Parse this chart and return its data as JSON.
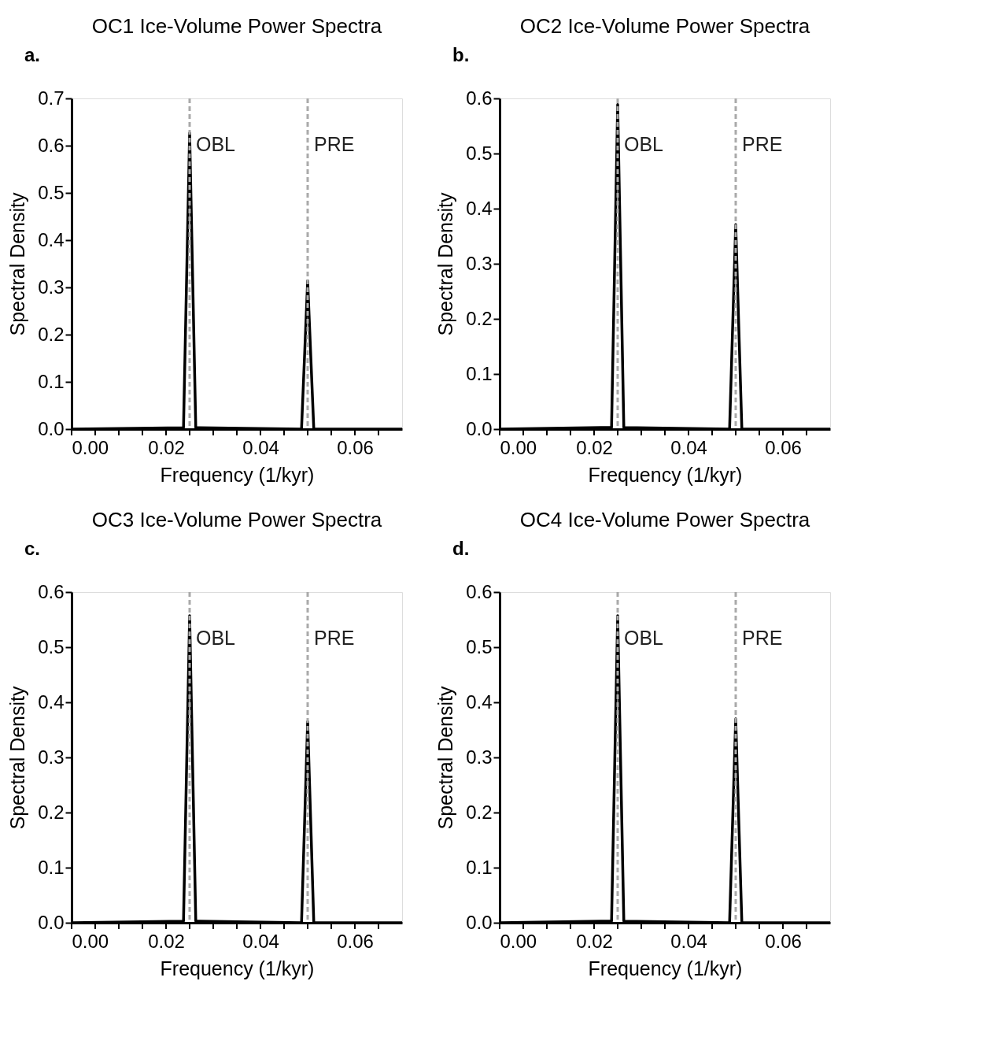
{
  "chart_data": [
    {
      "type": "line",
      "title": "OC1 Ice-Volume Power Spectra",
      "xlabel": "Frequency (1/kyr)",
      "ylabel": "Spectral Density",
      "annotations": [
        "a."
      ],
      "line_style": "solid",
      "marker": "none",
      "grid": false,
      "series": [
        {
          "color": "#000000",
          "x": [
            0,
            0.0237,
            0.025,
            0.0263,
            0.0487,
            0.05,
            0.0513,
            0.07
          ],
          "values": [
            0,
            0.003,
            0.627,
            0.003,
            0,
            0.314,
            0,
            0
          ]
        }
      ],
      "ref_lines": [
        {
          "axis": "x",
          "value": 0.025,
          "label": "OBL",
          "color": "#aaaaaa",
          "line_style": "dashed"
        },
        {
          "axis": "x",
          "value": 0.05,
          "label": "PRE",
          "color": "#aaaaaa",
          "line_style": "dashed"
        }
      ],
      "xlim": [
        0,
        0.07
      ],
      "ylim": [
        0,
        0.7
      ],
      "xticks": [
        {
          "value": 0,
          "label": "0.00"
        },
        {
          "value": 0.005,
          "label": null
        },
        {
          "value": 0.01,
          "label": null
        },
        {
          "value": 0.015,
          "label": null
        },
        {
          "value": 0.02,
          "label": "0.02"
        },
        {
          "value": 0.025,
          "label": null
        },
        {
          "value": 0.03,
          "label": null
        },
        {
          "value": 0.035,
          "label": null
        },
        {
          "value": 0.04,
          "label": "0.04"
        },
        {
          "value": 0.045,
          "label": null
        },
        {
          "value": 0.05,
          "label": null
        },
        {
          "value": 0.055,
          "label": null
        },
        {
          "value": 0.06,
          "label": "0.06"
        },
        {
          "value": 0.065,
          "label": null
        }
      ],
      "yticks": [
        {
          "value": 0,
          "label": "0.0"
        },
        {
          "value": 0.1,
          "label": "0.1"
        },
        {
          "value": 0.2,
          "label": "0.2"
        },
        {
          "value": 0.3,
          "label": "0.3"
        },
        {
          "value": 0.4,
          "label": "0.4"
        },
        {
          "value": 0.5,
          "label": "0.5"
        },
        {
          "value": 0.6,
          "label": "0.6"
        },
        {
          "value": 0.7,
          "label": "0.7"
        }
      ]
    },
    {
      "type": "line",
      "title": "OC2 Ice-Volume Power Spectra",
      "xlabel": "Frequency (1/kyr)",
      "ylabel": "Spectral Density",
      "annotations": [
        "b."
      ],
      "line_style": "solid",
      "marker": "none",
      "grid": false,
      "series": [
        {
          "color": "#000000",
          "x": [
            0,
            0.0237,
            0.025,
            0.0263,
            0.0487,
            0.05,
            0.0513,
            0.07
          ],
          "values": [
            0,
            0.003,
            0.589,
            0.003,
            0,
            0.371,
            0,
            0
          ]
        }
      ],
      "ref_lines": [
        {
          "axis": "x",
          "value": 0.025,
          "label": "OBL",
          "color": "#aaaaaa",
          "line_style": "dashed"
        },
        {
          "axis": "x",
          "value": 0.05,
          "label": "PRE",
          "color": "#aaaaaa",
          "line_style": "dashed"
        }
      ],
      "xlim": [
        0,
        0.07
      ],
      "ylim": [
        0,
        0.6
      ],
      "xticks": [
        {
          "value": 0,
          "label": "0.00"
        },
        {
          "value": 0.005,
          "label": null
        },
        {
          "value": 0.01,
          "label": null
        },
        {
          "value": 0.015,
          "label": null
        },
        {
          "value": 0.02,
          "label": "0.02"
        },
        {
          "value": 0.025,
          "label": null
        },
        {
          "value": 0.03,
          "label": null
        },
        {
          "value": 0.035,
          "label": null
        },
        {
          "value": 0.04,
          "label": "0.04"
        },
        {
          "value": 0.045,
          "label": null
        },
        {
          "value": 0.05,
          "label": null
        },
        {
          "value": 0.055,
          "label": null
        },
        {
          "value": 0.06,
          "label": "0.06"
        },
        {
          "value": 0.065,
          "label": null
        }
      ],
      "yticks": [
        {
          "value": 0,
          "label": "0.0"
        },
        {
          "value": 0.1,
          "label": "0.1"
        },
        {
          "value": 0.2,
          "label": "0.2"
        },
        {
          "value": 0.3,
          "label": "0.3"
        },
        {
          "value": 0.4,
          "label": "0.4"
        },
        {
          "value": 0.5,
          "label": "0.5"
        },
        {
          "value": 0.6,
          "label": "0.6"
        }
      ]
    },
    {
      "type": "line",
      "title": "OC3 Ice-Volume Power Spectra",
      "xlabel": "Frequency (1/kyr)",
      "ylabel": "Spectral Density",
      "annotations": [
        "c."
      ],
      "line_style": "solid",
      "marker": "none",
      "grid": false,
      "series": [
        {
          "color": "#000000",
          "x": [
            0,
            0.0237,
            0.025,
            0.0263,
            0.0487,
            0.05,
            0.0513,
            0.07
          ],
          "values": [
            0,
            0.003,
            0.557,
            0.003,
            0,
            0.365,
            0,
            0
          ]
        }
      ],
      "ref_lines": [
        {
          "axis": "x",
          "value": 0.025,
          "label": "OBL",
          "color": "#aaaaaa",
          "line_style": "dashed"
        },
        {
          "axis": "x",
          "value": 0.05,
          "label": "PRE",
          "color": "#aaaaaa",
          "line_style": "dashed"
        }
      ],
      "xlim": [
        0,
        0.07
      ],
      "ylim": [
        0,
        0.6
      ],
      "xticks": [
        {
          "value": 0,
          "label": "0.00"
        },
        {
          "value": 0.005,
          "label": null
        },
        {
          "value": 0.01,
          "label": null
        },
        {
          "value": 0.015,
          "label": null
        },
        {
          "value": 0.02,
          "label": "0.02"
        },
        {
          "value": 0.025,
          "label": null
        },
        {
          "value": 0.03,
          "label": null
        },
        {
          "value": 0.035,
          "label": null
        },
        {
          "value": 0.04,
          "label": "0.04"
        },
        {
          "value": 0.045,
          "label": null
        },
        {
          "value": 0.05,
          "label": null
        },
        {
          "value": 0.055,
          "label": null
        },
        {
          "value": 0.06,
          "label": "0.06"
        },
        {
          "value": 0.065,
          "label": null
        }
      ],
      "yticks": [
        {
          "value": 0,
          "label": "0.0"
        },
        {
          "value": 0.1,
          "label": "0.1"
        },
        {
          "value": 0.2,
          "label": "0.2"
        },
        {
          "value": 0.3,
          "label": "0.3"
        },
        {
          "value": 0.4,
          "label": "0.4"
        },
        {
          "value": 0.5,
          "label": "0.5"
        },
        {
          "value": 0.6,
          "label": "0.6"
        }
      ]
    },
    {
      "type": "line",
      "title": "OC4 Ice-Volume Power Spectra",
      "xlabel": "Frequency (1/kyr)",
      "ylabel": "Spectral Density",
      "annotations": [
        "d."
      ],
      "line_style": "solid",
      "marker": "none",
      "grid": false,
      "series": [
        {
          "color": "#000000",
          "x": [
            0,
            0.0237,
            0.025,
            0.0263,
            0.0487,
            0.05,
            0.0513,
            0.07
          ],
          "values": [
            0,
            0.003,
            0.557,
            0.003,
            0,
            0.37,
            0,
            0
          ]
        }
      ],
      "ref_lines": [
        {
          "axis": "x",
          "value": 0.025,
          "label": "OBL",
          "color": "#aaaaaa",
          "line_style": "dashed"
        },
        {
          "axis": "x",
          "value": 0.05,
          "label": "PRE",
          "color": "#aaaaaa",
          "line_style": "dashed"
        }
      ],
      "xlim": [
        0,
        0.07
      ],
      "ylim": [
        0,
        0.6
      ],
      "xticks": [
        {
          "value": 0,
          "label": "0.00"
        },
        {
          "value": 0.005,
          "label": null
        },
        {
          "value": 0.01,
          "label": null
        },
        {
          "value": 0.015,
          "label": null
        },
        {
          "value": 0.02,
          "label": "0.02"
        },
        {
          "value": 0.025,
          "label": null
        },
        {
          "value": 0.03,
          "label": null
        },
        {
          "value": 0.035,
          "label": null
        },
        {
          "value": 0.04,
          "label": "0.04"
        },
        {
          "value": 0.045,
          "label": null
        },
        {
          "value": 0.05,
          "label": null
        },
        {
          "value": 0.055,
          "label": null
        },
        {
          "value": 0.06,
          "label": "0.06"
        },
        {
          "value": 0.065,
          "label": null
        }
      ],
      "yticks": [
        {
          "value": 0,
          "label": "0.0"
        },
        {
          "value": 0.1,
          "label": "0.1"
        },
        {
          "value": 0.2,
          "label": "0.2"
        },
        {
          "value": 0.3,
          "label": "0.3"
        },
        {
          "value": 0.4,
          "label": "0.4"
        },
        {
          "value": 0.5,
          "label": "0.5"
        },
        {
          "value": 0.6,
          "label": "0.6"
        }
      ]
    }
  ]
}
